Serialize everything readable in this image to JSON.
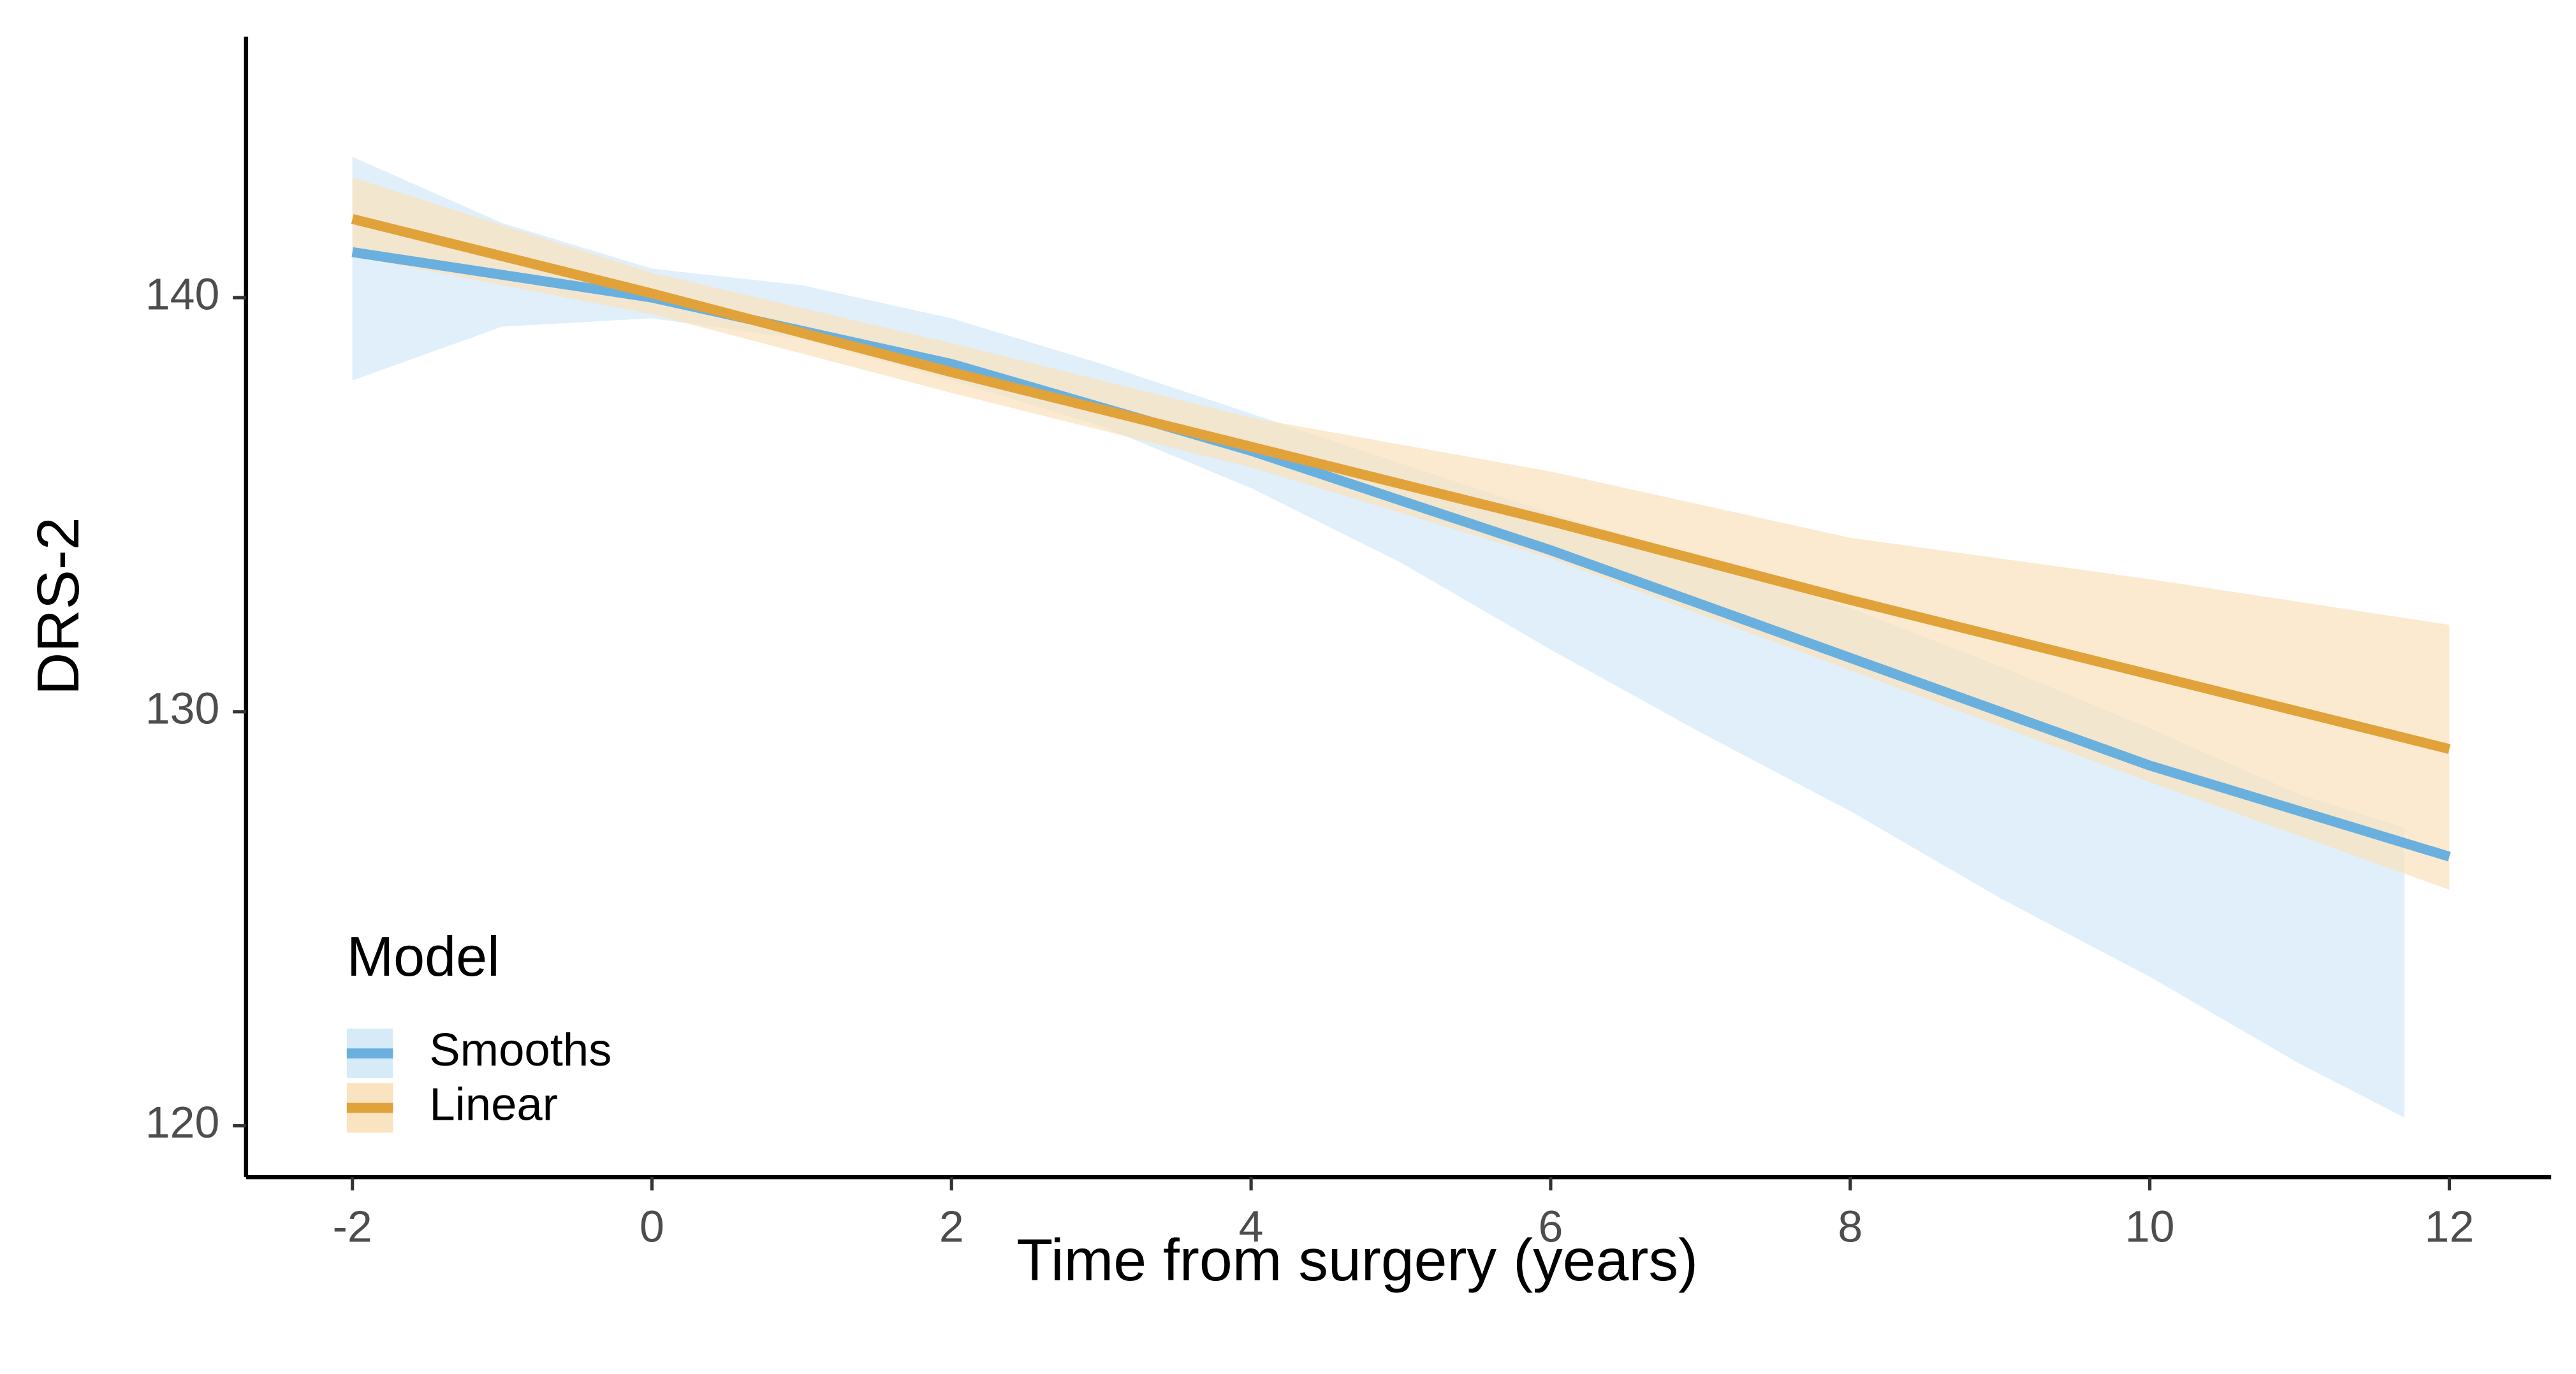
{
  "chart_data": {
    "type": "line",
    "x_label": "Time from surgery (years)",
    "y_label": "DRS-2",
    "xlim": [
      -2.71,
      12.68
    ],
    "ylim": [
      118.76,
      146.3
    ],
    "xticks": [
      -2,
      0,
      2,
      4,
      6,
      8,
      10,
      12
    ],
    "yticks": [
      120,
      130,
      140
    ],
    "grid": false,
    "legend": {
      "title": "Model",
      "position": "bottom-left"
    },
    "series": [
      {
        "name": "Smooths",
        "color": "#6ab0de",
        "ribbon_color": "#d6eaf8",
        "x": [
          -2,
          0,
          2,
          4,
          6,
          8,
          10,
          12
        ],
        "values": [
          141.1,
          140.0,
          138.4,
          136.3,
          133.9,
          131.3,
          128.7,
          126.5
        ],
        "ribbon": {
          "x": [
            -2,
            -1,
            0,
            1,
            2,
            3,
            4,
            5,
            6,
            7,
            8,
            9,
            10,
            11,
            11.7
          ],
          "lower": [
            138.0,
            139.3,
            139.5,
            139.0,
            138.0,
            136.9,
            135.4,
            133.6,
            131.5,
            129.5,
            127.6,
            125.5,
            123.6,
            121.5,
            120.2
          ],
          "upper": [
            143.4,
            141.8,
            140.7,
            140.3,
            139.5,
            138.4,
            137.2,
            136.0,
            134.8,
            133.7,
            132.5,
            131.1,
            129.6,
            128.0,
            127.2
          ]
        }
      },
      {
        "name": "Linear",
        "color": "#e1a23a",
        "ribbon_color": "#f9e3c0",
        "x": [
          -2,
          0,
          2,
          4,
          6,
          8,
          10,
          12
        ],
        "values": [
          141.9,
          140.1,
          138.2,
          136.4,
          134.6,
          132.7,
          130.9,
          129.1
        ],
        "ribbon": {
          "x": [
            -2,
            0,
            2,
            4,
            6,
            8,
            10,
            12
          ],
          "lower": [
            141.0,
            139.6,
            137.7,
            135.9,
            133.7,
            131.0,
            128.3,
            125.7
          ],
          "upper": [
            142.9,
            140.6,
            138.9,
            137.1,
            135.8,
            134.2,
            133.2,
            132.1
          ]
        }
      }
    ]
  }
}
